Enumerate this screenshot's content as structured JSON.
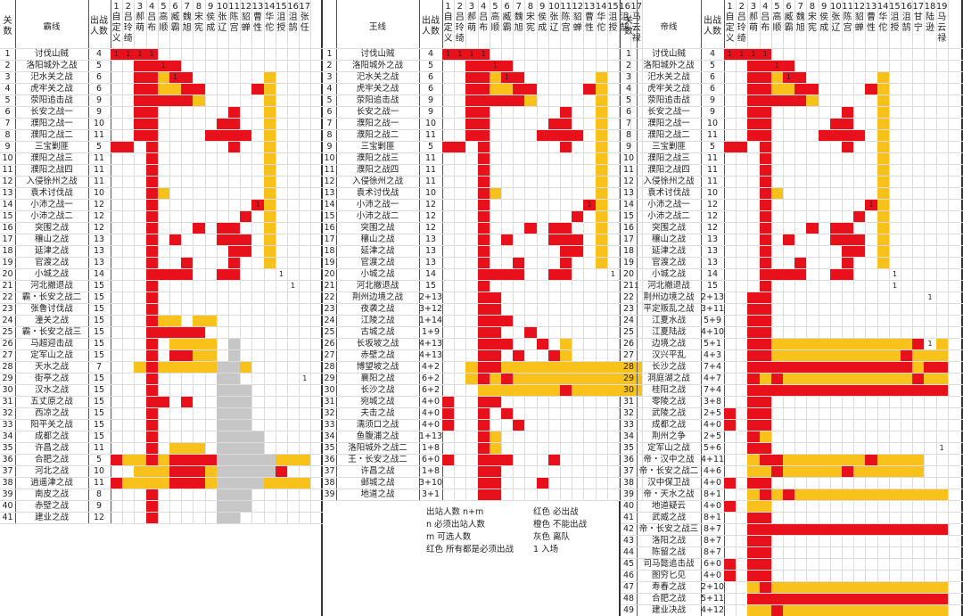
{
  "colors": {
    "red": "#e8101a",
    "orange": "#f8c21a",
    "gray": "#c6c6c6"
  },
  "sheets": [
    {
      "id": "ba",
      "left": 0,
      "width": 362,
      "title": "霸线",
      "count_header": "出战人数",
      "stage_col_header": "关数",
      "char_headers": [
        {
          "n": "1",
          "name": "自定义"
        },
        {
          "n": "2",
          "name": "吕玲绮"
        },
        {
          "n": "3",
          "name": "郝萌"
        },
        {
          "n": "4",
          "name": "吕布"
        },
        {
          "n": "5",
          "name": "高顺"
        },
        {
          "n": "6",
          "name": "臧霸"
        },
        {
          "n": "7",
          "name": "魏旭"
        },
        {
          "n": "8",
          "name": "宋宪"
        },
        {
          "n": "9",
          "name": "侯成"
        },
        {
          "n": "10",
          "name": "张辽"
        },
        {
          "n": "11",
          "name": "陈宫"
        },
        {
          "n": "12",
          "name": "貂蝉"
        },
        {
          "n": "13",
          "name": "曹性"
        },
        {
          "n": "14",
          "name": "华佗"
        },
        {
          "n": "15",
          "name": "沮授"
        },
        {
          "n": "16",
          "name": "沮鹄"
        },
        {
          "n": "17",
          "name": "张任"
        }
      ],
      "rows": [
        {
          "no": "1",
          "stage": "讨伐山贼",
          "count": "4"
        },
        {
          "no": "2",
          "stage": "洛阳城外之战",
          "count": "5"
        },
        {
          "no": "3",
          "stage": "汜水关之战",
          "count": "6"
        },
        {
          "no": "4",
          "stage": "虎牢关之战",
          "count": "6"
        },
        {
          "no": "5",
          "stage": "荥阳追击战",
          "count": "9"
        },
        {
          "no": "6",
          "stage": "长安之战一",
          "count": "9"
        },
        {
          "no": "7",
          "stage": "濮阳之战一",
          "count": "10"
        },
        {
          "no": "8",
          "stage": "濮阳之战二",
          "count": "11"
        },
        {
          "no": "9",
          "stage": "三宝剿匪",
          "count": "5"
        },
        {
          "no": "10",
          "stage": "濮阳之战三",
          "count": "11"
        },
        {
          "no": "11",
          "stage": "濮阳之战四",
          "count": "11"
        },
        {
          "no": "12",
          "stage": "入侵徐州之战",
          "count": "11"
        },
        {
          "no": "13",
          "stage": "袁术讨伐战",
          "count": "10"
        },
        {
          "no": "14",
          "stage": "小沛之战一",
          "count": "12"
        },
        {
          "no": "15",
          "stage": "小沛之战二",
          "count": "12"
        },
        {
          "no": "16",
          "stage": "突围之战",
          "count": "12"
        },
        {
          "no": "17",
          "stage": "穰山之战",
          "count": "13"
        },
        {
          "no": "18",
          "stage": "延津之战",
          "count": "13"
        },
        {
          "no": "19",
          "stage": "官渡之战",
          "count": "13"
        },
        {
          "no": "20",
          "stage": "小城之战",
          "count": "14"
        },
        {
          "no": "21",
          "stage": "河北撤退战",
          "count": "15"
        },
        {
          "no": "22",
          "stage": "霸・长安之战二",
          "count": "15"
        },
        {
          "no": "23",
          "stage": "张鲁讨伐战",
          "count": "15"
        },
        {
          "no": "24",
          "stage": "潼关之战",
          "count": "15"
        },
        {
          "no": "25",
          "stage": "霸・长安之战三",
          "count": "15"
        },
        {
          "no": "26",
          "stage": "马超迎击战",
          "count": "15"
        },
        {
          "no": "27",
          "stage": "定军山之战",
          "count": "15"
        },
        {
          "no": "28",
          "stage": "天水之战",
          "count": "7"
        },
        {
          "no": "29",
          "stage": "街亭之战",
          "count": "15"
        },
        {
          "no": "30",
          "stage": "汉水之战",
          "count": "15"
        },
        {
          "no": "31",
          "stage": "五丈原之战",
          "count": "15"
        },
        {
          "no": "32",
          "stage": "西凉之战",
          "count": "15"
        },
        {
          "no": "33",
          "stage": "阳平关之战",
          "count": "15"
        },
        {
          "no": "34",
          "stage": "成都之战",
          "count": "15"
        },
        {
          "no": "35",
          "stage": "许昌之战",
          "count": "11"
        },
        {
          "no": "36",
          "stage": "合肥之战",
          "count": "5"
        },
        {
          "no": "37",
          "stage": "河北之战",
          "count": "10"
        },
        {
          "no": "38",
          "stage": "逍遥津之战",
          "count": "11"
        },
        {
          "no": "39",
          "stage": "南皮之战",
          "count": "8"
        },
        {
          "no": "40",
          "stage": "赤壁之战",
          "count": "9"
        },
        {
          "no": "41",
          "stage": "建业之战",
          "count": "12"
        }
      ]
    },
    {
      "id": "wang",
      "left": 362,
      "width": 334,
      "title": "王线",
      "count_header": "出战人数",
      "stage_col_header": "",
      "char_headers": [
        {
          "n": "1",
          "name": "自定义"
        },
        {
          "n": "2",
          "name": "吕玲绮"
        },
        {
          "n": "3",
          "name": "郝萌"
        },
        {
          "n": "4",
          "name": "吕布"
        },
        {
          "n": "5",
          "name": "高顺"
        },
        {
          "n": "6",
          "name": "臧霸"
        },
        {
          "n": "7",
          "name": "魏旭"
        },
        {
          "n": "8",
          "name": "宋宪"
        },
        {
          "n": "9",
          "name": "侯成"
        },
        {
          "n": "10",
          "name": "张辽"
        },
        {
          "n": "11",
          "name": "陈宫"
        },
        {
          "n": "12",
          "name": "貂蝉"
        },
        {
          "n": "13",
          "name": "曹性"
        },
        {
          "n": "14",
          "name": "华佗"
        },
        {
          "n": "15",
          "name": "沮授"
        },
        {
          "n": "16",
          "name": "沮鹄"
        },
        {
          "n": "17",
          "name": "马云禄"
        }
      ],
      "rows": [
        {
          "no": "1",
          "stage": "讨伐山贼",
          "count": "4"
        },
        {
          "no": "2",
          "stage": "洛阳城外之战",
          "count": "5"
        },
        {
          "no": "3",
          "stage": "汜水关之战",
          "count": "6"
        },
        {
          "no": "4",
          "stage": "虎牢关之战",
          "count": "6"
        },
        {
          "no": "5",
          "stage": "荥阳追击战",
          "count": "9"
        },
        {
          "no": "6",
          "stage": "长安之战一",
          "count": "9"
        },
        {
          "no": "7",
          "stage": "濮阳之战一",
          "count": "10"
        },
        {
          "no": "8",
          "stage": "濮阳之战二",
          "count": "11"
        },
        {
          "no": "9",
          "stage": "三宝剿匪",
          "count": "5"
        },
        {
          "no": "10",
          "stage": "濮阳之战三",
          "count": "11"
        },
        {
          "no": "11",
          "stage": "濮阳之战四",
          "count": "11"
        },
        {
          "no": "12",
          "stage": "入侵徐州之战",
          "count": "11"
        },
        {
          "no": "13",
          "stage": "袁术讨伐战",
          "count": "10"
        },
        {
          "no": "14",
          "stage": "小沛之战一",
          "count": "12"
        },
        {
          "no": "15",
          "stage": "小沛之战二",
          "count": "12"
        },
        {
          "no": "16",
          "stage": "突围之战",
          "count": "12"
        },
        {
          "no": "17",
          "stage": "穰山之战",
          "count": "13"
        },
        {
          "no": "18",
          "stage": "延津之战",
          "count": "13"
        },
        {
          "no": "19",
          "stage": "官渡之战",
          "count": "13"
        },
        {
          "no": "20",
          "stage": "小城之战",
          "count": "14"
        },
        {
          "no": "21",
          "stage": "河北撤退战",
          "count": "15"
        },
        {
          "no": "22",
          "stage": "荆州边境之战",
          "count": "2+13"
        },
        {
          "no": "23",
          "stage": "夜袭之战",
          "count": "3+12"
        },
        {
          "no": "24",
          "stage": "江陵之战",
          "count": "1+14"
        },
        {
          "no": "25",
          "stage": "古城之战",
          "count": "1+9"
        },
        {
          "no": "26",
          "stage": "长坂坡之战",
          "count": "4+13"
        },
        {
          "no": "27",
          "stage": "赤壁之战",
          "count": "4+13"
        },
        {
          "no": "28",
          "stage": "博望坡之战",
          "count": "4+2"
        },
        {
          "no": "29",
          "stage": "襄阳之战",
          "count": "6+2"
        },
        {
          "no": "30",
          "stage": "长沙之战",
          "count": "6+2"
        },
        {
          "no": "31",
          "stage": "宛城之战",
          "count": "4+0"
        },
        {
          "no": "32",
          "stage": "夫击之战",
          "count": "4+0"
        },
        {
          "no": "33",
          "stage": "濡须口之战",
          "count": "4+0"
        },
        {
          "no": "34",
          "stage": "鱼腹浦之战",
          "count": "1+13"
        },
        {
          "no": "35",
          "stage": "洛阳城外之战二",
          "count": "1+8"
        },
        {
          "no": "36",
          "stage": "王・长安之战二",
          "count": "6+0"
        },
        {
          "no": "37",
          "stage": "许昌之战",
          "count": "1+8"
        },
        {
          "no": "38",
          "stage": "邺城之战",
          "count": "3+10"
        },
        {
          "no": "39",
          "stage": "地道之战",
          "count": "3+1"
        }
      ]
    },
    {
      "id": "di",
      "left": 696,
      "width": 384,
      "title": "帝线",
      "count_header": "出战人数",
      "stage_col_header": "关数",
      "char_headers": [
        {
          "n": "1",
          "name": "自定义"
        },
        {
          "n": "2",
          "name": "吕玲绮"
        },
        {
          "n": "3",
          "name": "郝萌"
        },
        {
          "n": "4",
          "name": "吕布"
        },
        {
          "n": "5",
          "name": "高顺"
        },
        {
          "n": "6",
          "name": "臧霸"
        },
        {
          "n": "7",
          "name": "魏旭"
        },
        {
          "n": "8",
          "name": "宋宪"
        },
        {
          "n": "9",
          "name": "侯成"
        },
        {
          "n": "10",
          "name": "张辽"
        },
        {
          "n": "11",
          "name": "陈宫"
        },
        {
          "n": "12",
          "name": "貂蝉"
        },
        {
          "n": "13",
          "name": "曹性"
        },
        {
          "n": "14",
          "name": "华佗"
        },
        {
          "n": "15",
          "name": "沮授"
        },
        {
          "n": "16",
          "name": "沮鹄"
        },
        {
          "n": "17",
          "name": "甘宁"
        },
        {
          "n": "18",
          "name": "陆逊"
        },
        {
          "n": "19",
          "name": "马云禄"
        }
      ],
      "rows": [
        {
          "no": "1",
          "stage": "讨伐山贼",
          "count": "4"
        },
        {
          "no": "2",
          "stage": "洛阳城外之战",
          "count": "5"
        },
        {
          "no": "3",
          "stage": "汜水关之战",
          "count": "6"
        },
        {
          "no": "4",
          "stage": "虎牢关之战",
          "count": "6"
        },
        {
          "no": "5",
          "stage": "荥阳追击战",
          "count": "9"
        },
        {
          "no": "6",
          "stage": "长安之战一",
          "count": "9"
        },
        {
          "no": "7",
          "stage": "濮阳之战一",
          "count": "10"
        },
        {
          "no": "8",
          "stage": "濮阳之战二",
          "count": "11"
        },
        {
          "no": "9",
          "stage": "三宝剿匪",
          "count": "5"
        },
        {
          "no": "10",
          "stage": "濮阳之战三",
          "count": "11"
        },
        {
          "no": "11",
          "stage": "濮阳之战四",
          "count": "11"
        },
        {
          "no": "12",
          "stage": "入侵徐州之战",
          "count": "11"
        },
        {
          "no": "13",
          "stage": "袁术讨伐战",
          "count": "10"
        },
        {
          "no": "14",
          "stage": "小沛之战一",
          "count": "12"
        },
        {
          "no": "15",
          "stage": "小沛之战二",
          "count": "12"
        },
        {
          "no": "16",
          "stage": "突围之战",
          "count": "12"
        },
        {
          "no": "17",
          "stage": "穰山之战",
          "count": "13"
        },
        {
          "no": "18",
          "stage": "延津之战",
          "count": "13"
        },
        {
          "no": "19",
          "stage": "官渡之战",
          "count": "13"
        },
        {
          "no": "20",
          "stage": "小城之战",
          "count": "14"
        },
        {
          "no": "21",
          "stage": "河北撤退战",
          "count": "15"
        },
        {
          "no": "22",
          "stage": "荆州边境之战",
          "count": "2+13"
        },
        {
          "no": "23",
          "stage": "平定叛乱之战",
          "count": "3+11"
        },
        {
          "no": "24",
          "stage": "江夏水战",
          "count": "5+9"
        },
        {
          "no": "25",
          "stage": "江夏陆战",
          "count": "4+10"
        },
        {
          "no": "26",
          "stage": "边境之战",
          "count": "5+1"
        },
        {
          "no": "27",
          "stage": "汉兴平乱",
          "count": "4+3"
        },
        {
          "no": "28",
          "stage": "长沙之战",
          "count": "7+4"
        },
        {
          "no": "29",
          "stage": "洞庭湖之战",
          "count": "4+7"
        },
        {
          "no": "30",
          "stage": "桂阳之战",
          "count": "7+4"
        },
        {
          "no": "31",
          "stage": "零陵之战",
          "count": "3+8"
        },
        {
          "no": "32",
          "stage": "武陵之战",
          "count": "2+5"
        },
        {
          "no": "33",
          "stage": "成都之战",
          "count": "4+0"
        },
        {
          "no": "34",
          "stage": "荆州之争",
          "count": "2+5"
        },
        {
          "no": "35",
          "stage": "定军山之战",
          "count": "5+6"
        },
        {
          "no": "36",
          "stage": "帝・汉中之战",
          "count": "4+11"
        },
        {
          "no": "37",
          "stage": "帝・长安之战二",
          "count": "4+6"
        },
        {
          "no": "38",
          "stage": "汉中保卫战",
          "count": "4+0"
        },
        {
          "no": "39",
          "stage": "帝・天水之战",
          "count": "8+1"
        },
        {
          "no": "40",
          "stage": "地道疑云",
          "count": "4+0"
        },
        {
          "no": "41",
          "stage": "武威之战",
          "count": "8+1"
        },
        {
          "no": "42",
          "stage": "帝・长安之战三",
          "count": "8+7"
        },
        {
          "no": "43",
          "stage": "洛阳之战",
          "count": "8+7"
        },
        {
          "no": "44",
          "stage": "陈留之战",
          "count": "8+7"
        },
        {
          "no": "45",
          "stage": "司马懿追击战",
          "count": "6+0"
        },
        {
          "no": "46",
          "stage": "图穷匕见",
          "count": "4+0"
        },
        {
          "no": "47",
          "stage": "寿春之战",
          "count": "2+10"
        },
        {
          "no": "48",
          "stage": "合肥之战",
          "count": "5+11"
        },
        {
          "no": "49",
          "stage": "建业决战",
          "count": "4+12"
        }
      ]
    }
  ],
  "legend": {
    "left": [
      "出站人数 n+m",
      "n 必须出站人数",
      "m 可选人数",
      "红色 所有都是必须出战"
    ],
    "right": [
      "红色 必出战",
      "橙色 不能出战",
      "灰色 离队",
      "1 入场"
    ]
  }
}
